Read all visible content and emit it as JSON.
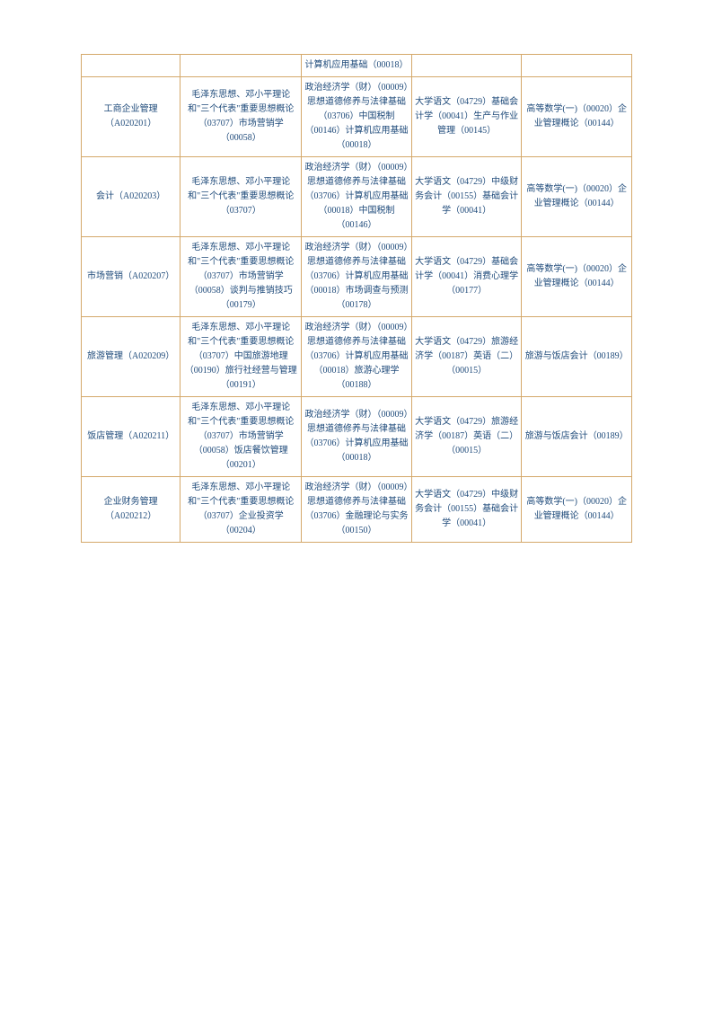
{
  "table": {
    "border_color": "#d4a86a",
    "text_color": "#1e4a7a",
    "background_color": "#ffffff",
    "font_size": 10,
    "rows": [
      {
        "c1": "",
        "c2": "",
        "c3": "计算机应用基础（00018）",
        "c4": "",
        "c5": ""
      },
      {
        "c1": "工商企业管理（A020201）",
        "c2": "毛泽东思想、邓小平理论和\"三个代表\"重要思想概论（03707）市场营销学（00058）",
        "c3": "政治经济学（财）（00009）思想道德修养与法律基础（03706）中国税制（00146）计算机应用基础（00018）",
        "c4": "大学语文（04729）基础会计学（00041）生产与作业管理（00145）",
        "c5": "高等数学(一)（00020）企业管理概论（00144）"
      },
      {
        "c1": "会计（A020203）",
        "c2": "毛泽东思想、邓小平理论和\"三个代表\"重要思想概论（03707）",
        "c3": "政治经济学（财）（00009）思想道德修养与法律基础（03706）计算机应用基础（00018）中国税制（00146）",
        "c4": "大学语文（04729）中级财务会计（00155）基础会计学（00041）",
        "c5": "高等数学(一)（00020）企业管理概论（00144）"
      },
      {
        "c1": "市场营销（A020207）",
        "c2": "毛泽东思想、邓小平理论和\"三个代表\"重要思想概论（03707）市场营销学（00058）谈判与推销技巧（00179）",
        "c3": "政治经济学（财）（00009）思想道德修养与法律基础（03706）计算机应用基础（00018）市场调查与预测（00178）",
        "c4": "大学语文（04729）基础会计学（00041）消费心理学（00177）",
        "c5": "高等数学(一)（00020）企业管理概论（00144）"
      },
      {
        "c1": "旅游管理（A020209）",
        "c2": "毛泽东思想、邓小平理论和\"三个代表\"重要思想概论（03707）中国旅游地理（00190）旅行社经营与管理（00191）",
        "c3": "政治经济学（财）（00009）思想道德修养与法律基础（03706）计算机应用基础（00018）旅游心理学（00188）",
        "c4": "大学语文（04729）旅游经济学（00187）英语（二）（00015）",
        "c5": "旅游与饭店会计（00189）"
      },
      {
        "c1": "饭店管理（A020211）",
        "c2": "毛泽东思想、邓小平理论和\"三个代表\"重要思想概论（03707）市场营销学（00058）饭店餐饮管理（00201）",
        "c3": "政治经济学（财）（00009）思想道德修养与法律基础（03706）计算机应用基础（00018）",
        "c4": "大学语文（04729）旅游经济学（00187）英语（二）（00015）",
        "c5": "旅游与饭店会计（00189）"
      },
      {
        "c1": "企业财务管理（A020212）",
        "c2": "毛泽东思想、邓小平理论和\"三个代表\"重要思想概论（03707）企业投资学（00204）",
        "c3": "政治经济学（财）（00009）思想道德修养与法律基础（03706）金融理论与实务（00150）",
        "c4": "大学语文（04729）中级财务会计（00155）基础会计学（00041）",
        "c5": "高等数学(一)（00020）企业管理概论（00144）"
      }
    ]
  }
}
